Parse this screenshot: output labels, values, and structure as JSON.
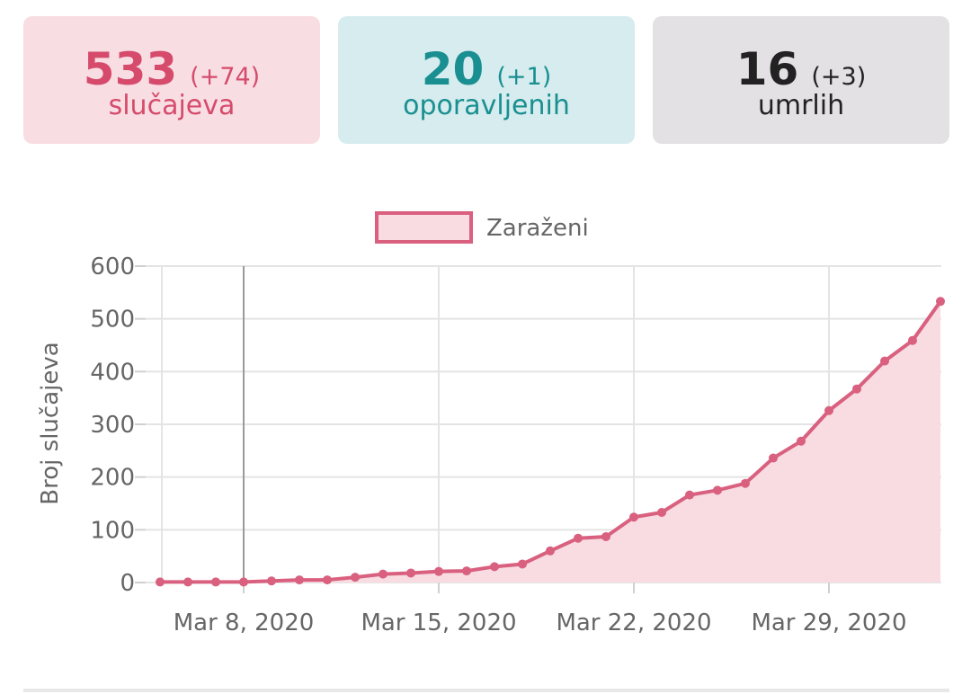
{
  "stats": {
    "cases": {
      "value": "533",
      "delta": "(+74)",
      "label": "slučajeva",
      "color": "#d64b6c",
      "bg": "#f8dee3"
    },
    "recovered": {
      "value": "20",
      "delta": "(+1)",
      "label": "oporavljenih",
      "color": "#1a8f91",
      "bg": "#d6ecee"
    },
    "deaths": {
      "value": "16",
      "delta": "(+3)",
      "label": "umrlih",
      "color": "#222222",
      "bg": "#e4e1e4"
    }
  },
  "chart_data": {
    "type": "area",
    "ylabel": "Broj slučajeva",
    "ylim": [
      0,
      600
    ],
    "yticks": [
      0,
      100,
      200,
      300,
      400,
      500,
      600
    ],
    "x_tick_labels": [
      "Mar 8, 2020",
      "Mar 15, 2020",
      "Mar 22, 2020",
      "Mar 29, 2020"
    ],
    "x_tick_dates": [
      "2020-03-08",
      "2020-03-15",
      "2020-03-22",
      "2020-03-29"
    ],
    "xlim": [
      "2020-03-05",
      "2020-04-02"
    ],
    "grid": true,
    "legend_position": "top-center",
    "series": [
      {
        "name": "Zaraženi",
        "color": "#d9607f",
        "fill": "#f8dce2",
        "x": [
          "2020-03-05",
          "2020-03-06",
          "2020-03-07",
          "2020-03-08",
          "2020-03-09",
          "2020-03-10",
          "2020-03-11",
          "2020-03-12",
          "2020-03-13",
          "2020-03-14",
          "2020-03-15",
          "2020-03-16",
          "2020-03-17",
          "2020-03-18",
          "2020-03-19",
          "2020-03-20",
          "2020-03-21",
          "2020-03-22",
          "2020-03-23",
          "2020-03-24",
          "2020-03-25",
          "2020-03-26",
          "2020-03-27",
          "2020-03-28",
          "2020-03-29",
          "2020-03-30",
          "2020-03-31",
          "2020-04-01",
          "2020-04-02"
        ],
        "values": [
          1,
          1,
          1,
          1,
          3,
          5,
          5,
          10,
          16,
          18,
          21,
          22,
          30,
          35,
          60,
          84,
          87,
          124,
          133,
          166,
          175,
          188,
          236,
          268,
          326,
          367,
          420,
          459,
          533
        ]
      }
    ]
  }
}
